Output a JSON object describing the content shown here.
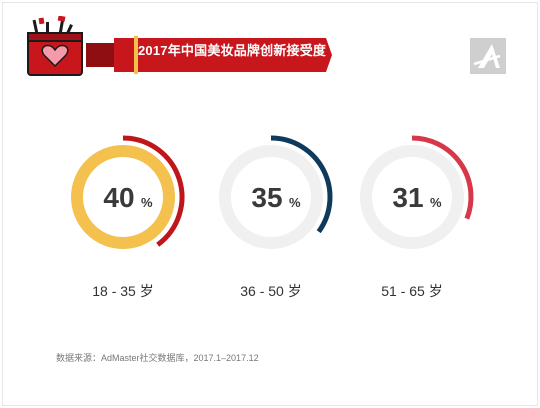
{
  "banner": {
    "title": "2017年中国美妆品牌创新接受度"
  },
  "chart_data": {
    "type": "donut",
    "title": "2017年中国美妆品牌创新接受度",
    "categories": [
      "18 - 35 岁",
      "36 - 50 岁",
      "51 - 65 岁"
    ],
    "values": [
      40,
      35,
      31
    ],
    "value_labels": [
      "40",
      "35",
      "31"
    ],
    "unit": "%",
    "colors": [
      "#c0151b",
      "#0f3a5c",
      "#d6384a"
    ],
    "highlight_fill": "#f4c04e",
    "track_color": "#f0f0f0"
  },
  "source": "数据来源：AdMaster社交数据库，2017.1–2017.12",
  "colors": {
    "brand_red": "#c8161d",
    "dark_red": "#8e0e12",
    "text": "#333333"
  }
}
